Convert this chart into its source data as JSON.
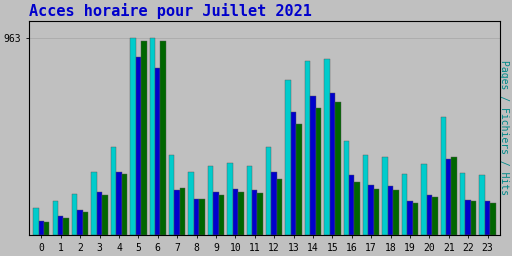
{
  "title": "Acces horaire pour Juillet 2021",
  "ylabel": "Pages / Fichiers / Hits",
  "xlabel_vals": [
    "0",
    "1",
    "2",
    "3",
    "4",
    "5",
    "6",
    "7",
    "8",
    "9",
    "10",
    "11",
    "12",
    "13",
    "14",
    "15",
    "16",
    "17",
    "18",
    "19",
    "20",
    "21",
    "22",
    "23"
  ],
  "background_color": "#c0c0c0",
  "plot_bg": "#c0c0c0",
  "title_color": "#0000cc",
  "bar_groups": {
    "hits": [
      130,
      165,
      200,
      310,
      430,
      963,
      963,
      390,
      310,
      340,
      350,
      340,
      430,
      760,
      850,
      860,
      460,
      390,
      380,
      300,
      345,
      580,
      305,
      295
    ],
    "fichiers": [
      70,
      95,
      120,
      210,
      310,
      870,
      820,
      220,
      175,
      210,
      225,
      220,
      310,
      600,
      680,
      695,
      295,
      245,
      240,
      165,
      195,
      370,
      170,
      165
    ],
    "pages": [
      65,
      85,
      110,
      195,
      300,
      950,
      950,
      230,
      175,
      195,
      210,
      205,
      275,
      545,
      620,
      650,
      260,
      225,
      220,
      155,
      185,
      380,
      165,
      155
    ]
  },
  "colors": {
    "hits": "#00cccc",
    "fichiers": "#0000cc",
    "pages": "#006600"
  },
  "grid_color": "#aaaaaa",
  "border_color": "#000000",
  "title_fontsize": 11,
  "tick_fontsize": 7,
  "ylabel_fontsize": 7,
  "bar_width": 0.28,
  "ylim_max": 1050,
  "ytick_val": 963
}
